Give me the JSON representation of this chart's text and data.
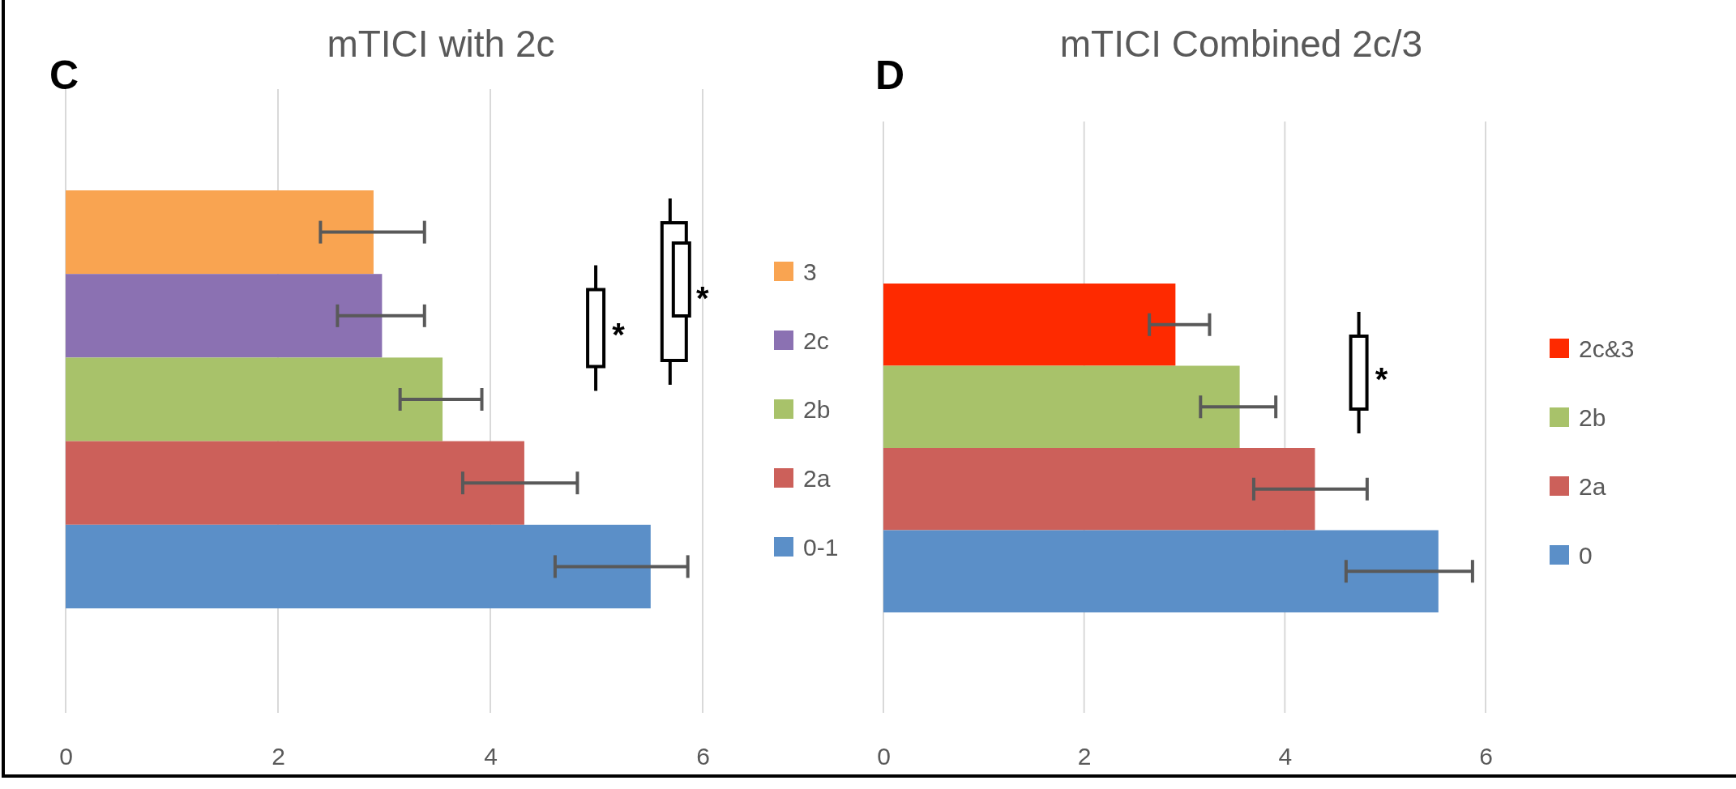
{
  "chart_data": [
    {
      "type": "bar",
      "orientation": "horizontal",
      "title": "mTICI with 2c",
      "stacked": true,
      "categories": [
        null,
        null,
        null,
        null,
        null
      ],
      "xlim": [
        0,
        6
      ],
      "xticks": [
        0,
        2,
        4,
        6
      ],
      "grid": "x",
      "legend": "right",
      "series": [
        {
          "name": "3",
          "color": "#f9a451",
          "values": [
            2.9,
            null,
            null,
            null,
            null
          ],
          "errors": [
            [
              2.4,
              3.38
            ],
            null,
            null,
            null,
            null
          ]
        },
        {
          "name": "2c",
          "color": "#8b71b2",
          "values": [
            null,
            2.98,
            null,
            null,
            null
          ],
          "errors": [
            null,
            [
              2.56,
              3.38
            ],
            null,
            null,
            null
          ]
        },
        {
          "name": "2b",
          "color": "#a8c26a",
          "values": [
            null,
            null,
            3.55,
            null,
            null
          ],
          "errors": [
            null,
            null,
            [
              3.15,
              3.92
            ],
            null,
            null
          ]
        },
        {
          "name": "2a",
          "color": "#cc605a",
          "values": [
            null,
            null,
            null,
            4.32,
            null
          ],
          "errors": [
            null,
            null,
            null,
            [
              3.74,
              4.82
            ],
            null
          ]
        },
        {
          "name": "0-1",
          "color": "#5b8fc8",
          "values": [
            null,
            null,
            null,
            null,
            5.51
          ],
          "errors": [
            null,
            null,
            null,
            null,
            [
              4.61,
              5.86
            ]
          ]
        }
      ],
      "annotations": [
        "C",
        "*",
        "*"
      ]
    },
    {
      "type": "bar",
      "orientation": "horizontal",
      "title": "mTICI Combined 2c/3",
      "stacked": true,
      "categories": [
        null,
        null,
        null,
        null
      ],
      "xlim": [
        0,
        6
      ],
      "xticks": [
        0,
        2,
        4,
        6
      ],
      "grid": "x",
      "legend": "right",
      "series": [
        {
          "name": "2c&3",
          "color": "#fe2a00",
          "values": [
            2.91,
            null,
            null,
            null
          ],
          "errors": [
            [
              2.65,
              3.25
            ],
            null,
            null,
            null
          ]
        },
        {
          "name": "2b",
          "color": "#a8c26a",
          "values": [
            null,
            3.55,
            null,
            null
          ],
          "errors": [
            null,
            [
              3.16,
              3.91
            ],
            null,
            null
          ]
        },
        {
          "name": "2a",
          "color": "#cc605a",
          "values": [
            null,
            null,
            4.3,
            null
          ],
          "errors": [
            null,
            null,
            [
              3.69,
              4.82
            ],
            null
          ]
        },
        {
          "name": "0",
          "color": "#5b8fc8",
          "values": [
            null,
            null,
            null,
            5.53
          ],
          "errors": [
            null,
            null,
            null,
            [
              4.61,
              5.87
            ]
          ]
        }
      ],
      "annotations": [
        "D",
        "*"
      ]
    }
  ]
}
